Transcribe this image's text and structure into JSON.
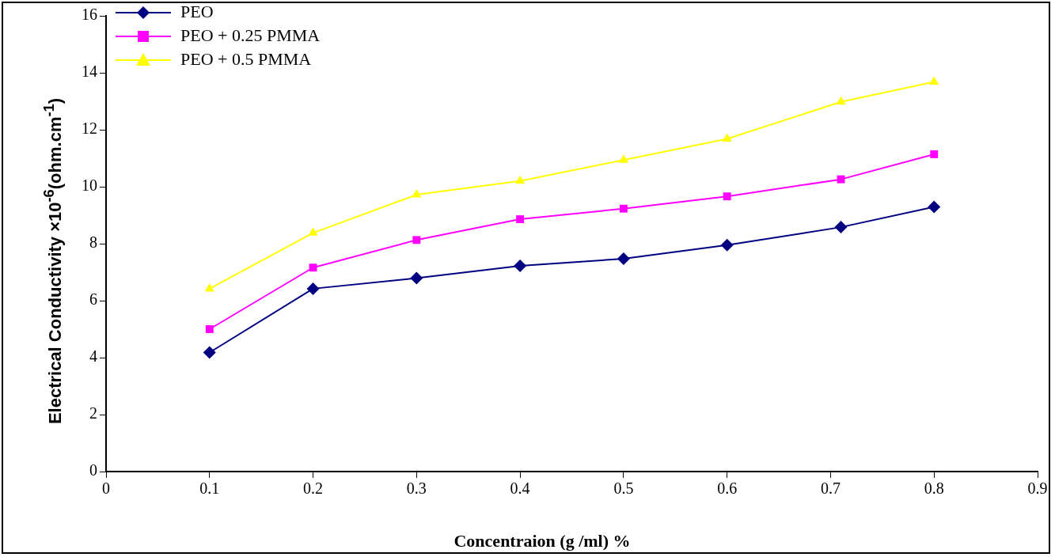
{
  "chart_data": {
    "type": "line",
    "xlabel": "Concentraion (g /ml) %",
    "ylabel": "Electrical Conductivity ×10$^{-6}$(ohm.cm$^{-1}$)",
    "x": [
      0.1,
      0.2,
      0.3,
      0.4,
      0.5,
      0.6,
      0.71,
      0.8
    ],
    "series": [
      {
        "name": "PEO",
        "color": "#000080",
        "marker": "diamond",
        "values": [
          4.18,
          6.42,
          6.79,
          7.22,
          7.47,
          7.95,
          8.58,
          9.29
        ]
      },
      {
        "name": "PEO + 0.25 PMMA",
        "color": "#ff00ff",
        "marker": "square",
        "values": [
          5.0,
          7.16,
          8.13,
          8.86,
          9.23,
          9.66,
          10.26,
          11.14
        ]
      },
      {
        "name": "PEO + 0.5 PMMA",
        "color": "#ffff00",
        "marker": "triangle",
        "values": [
          6.42,
          8.38,
          9.72,
          10.2,
          10.94,
          11.68,
          12.98,
          13.68
        ]
      }
    ],
    "xlim": [
      0,
      0.9
    ],
    "xticks": [
      0,
      0.1,
      0.2,
      0.3,
      0.4,
      0.5,
      0.6,
      0.7,
      0.8,
      0.9
    ],
    "ylim": [
      0,
      16
    ],
    "yticks": [
      0,
      2,
      4,
      6,
      8,
      10,
      12,
      14,
      16
    ],
    "grid": false,
    "legend": "top left",
    "line_style": "solid"
  }
}
